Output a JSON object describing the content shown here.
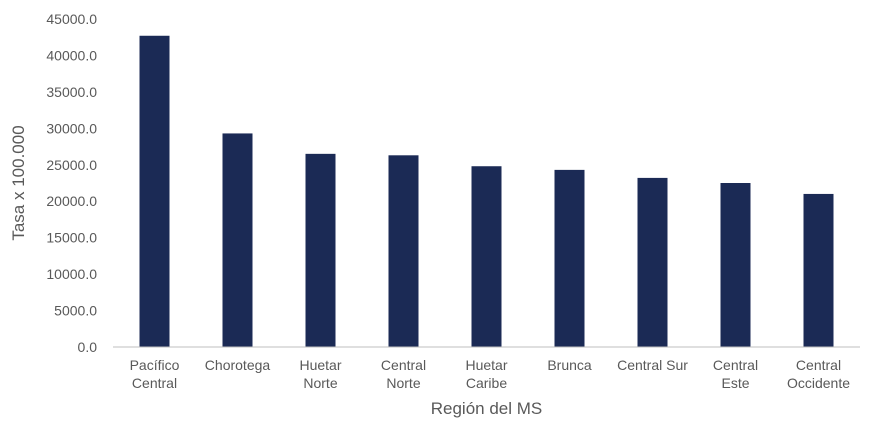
{
  "chart_data": {
    "type": "bar",
    "title": "",
    "xlabel": "Región del MS",
    "ylabel": "Tasa x 100.000",
    "categories": [
      [
        "Pacífico",
        "Central"
      ],
      [
        "Chorotega"
      ],
      [
        "Huetar",
        "Norte"
      ],
      [
        "Central",
        "Norte"
      ],
      [
        "Huetar",
        "Caribe"
      ],
      [
        "Brunca"
      ],
      [
        "Central Sur"
      ],
      [
        "Central",
        "Este"
      ],
      [
        "Central",
        "Occidente"
      ]
    ],
    "values": [
      42700,
      29300,
      26500,
      26300,
      24800,
      24300,
      23200,
      22500,
      21000
    ],
    "ylim": [
      0,
      45000
    ],
    "yticks": [
      "0.0",
      "5000.0",
      "10000.0",
      "15000.0",
      "20000.0",
      "25000.0",
      "30000.0",
      "35000.0",
      "40000.0",
      "45000.0"
    ],
    "grid": false,
    "bar_color": "#1b2a55",
    "axis_color": "#bfbfbf",
    "text_color": "#595959"
  }
}
